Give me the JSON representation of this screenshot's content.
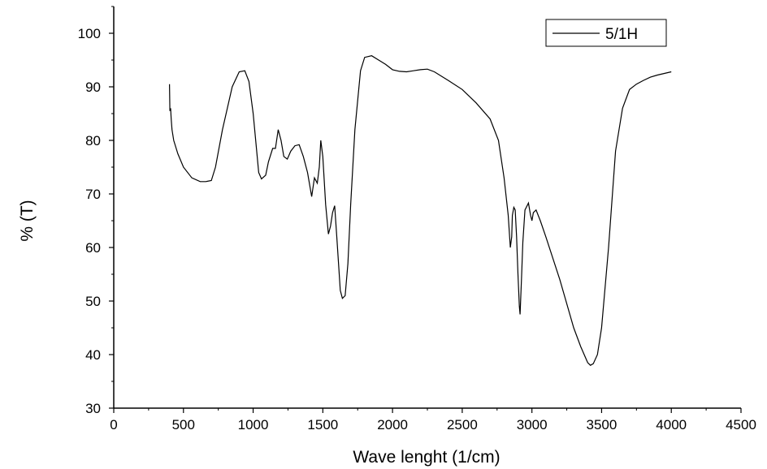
{
  "chart_data": {
    "type": "line",
    "title": "",
    "xlabel": "Wave lenght (1/cm)",
    "ylabel": "% (T)",
    "xlim": [
      0,
      4500
    ],
    "ylim": [
      30,
      105
    ],
    "xticks": [
      0,
      500,
      1000,
      1500,
      2000,
      2500,
      3000,
      3500,
      4000,
      4500
    ],
    "yticks": [
      30,
      40,
      50,
      60,
      70,
      80,
      90,
      100
    ],
    "xtick_labels": [
      "0",
      "500",
      "1000",
      "1500",
      "2000",
      "2500",
      "3000",
      "3500",
      "4000",
      "4500"
    ],
    "ytick_labels": [
      "30",
      "40",
      "50",
      "60",
      "70",
      "80",
      "90",
      "100"
    ],
    "grid": false,
    "legend_position": "top-right",
    "series": [
      {
        "name": "5/1H",
        "color": "#000000",
        "x": [
          400,
          403,
          408,
          412,
          418,
          430,
          460,
          500,
          560,
          620,
          660,
          700,
          730,
          780,
          850,
          900,
          940,
          970,
          1000,
          1040,
          1060,
          1090,
          1110,
          1140,
          1160,
          1180,
          1200,
          1220,
          1245,
          1270,
          1300,
          1330,
          1360,
          1390,
          1420,
          1440,
          1460,
          1475,
          1485,
          1500,
          1520,
          1540,
          1555,
          1570,
          1585,
          1600,
          1615,
          1625,
          1640,
          1660,
          1680,
          1700,
          1730,
          1770,
          1800,
          1850,
          1900,
          1950,
          2000,
          2050,
          2100,
          2200,
          2250,
          2300,
          2400,
          2500,
          2600,
          2700,
          2760,
          2800,
          2830,
          2845,
          2855,
          2860,
          2870,
          2880,
          2890,
          2900,
          2910,
          2915,
          2925,
          2935,
          2950,
          2975,
          2990,
          3000,
          3010,
          3030,
          3060,
          3100,
          3200,
          3300,
          3350,
          3400,
          3420,
          3440,
          3470,
          3500,
          3550,
          3600,
          3650,
          3700,
          3750,
          3800,
          3850,
          3900,
          4000
        ],
        "values": [
          90.5,
          85.5,
          86.0,
          84.0,
          82.0,
          80.0,
          77.5,
          75.0,
          73.0,
          72.3,
          72.3,
          72.5,
          75.0,
          82.0,
          90.0,
          92.8,
          93.0,
          91.0,
          85.0,
          74.0,
          72.8,
          73.5,
          76.0,
          78.5,
          78.5,
          82.0,
          80.0,
          77.0,
          76.5,
          78.0,
          79.0,
          79.2,
          77.0,
          74.0,
          69.5,
          73.0,
          72.0,
          75.0,
          80.0,
          77.0,
          68.0,
          62.5,
          64.0,
          66.5,
          67.8,
          62.0,
          56.0,
          52.0,
          50.5,
          51.0,
          57.0,
          68.0,
          82.0,
          93.0,
          95.5,
          95.8,
          95.0,
          94.2,
          93.2,
          92.9,
          92.8,
          93.2,
          93.3,
          92.8,
          91.2,
          89.5,
          87.0,
          84.0,
          80.0,
          73.0,
          66.0,
          60.0,
          62.0,
          66.0,
          67.5,
          67.0,
          62.0,
          55.0,
          49.0,
          47.5,
          54.0,
          61.0,
          67.0,
          68.3,
          66.0,
          65.0,
          66.5,
          67.0,
          65.0,
          62.0,
          54.0,
          45.0,
          41.5,
          38.5,
          38.0,
          38.3,
          40.0,
          45.0,
          60.0,
          78.0,
          86.0,
          89.5,
          90.5,
          91.2,
          91.8,
          92.2,
          92.8
        ]
      }
    ]
  }
}
